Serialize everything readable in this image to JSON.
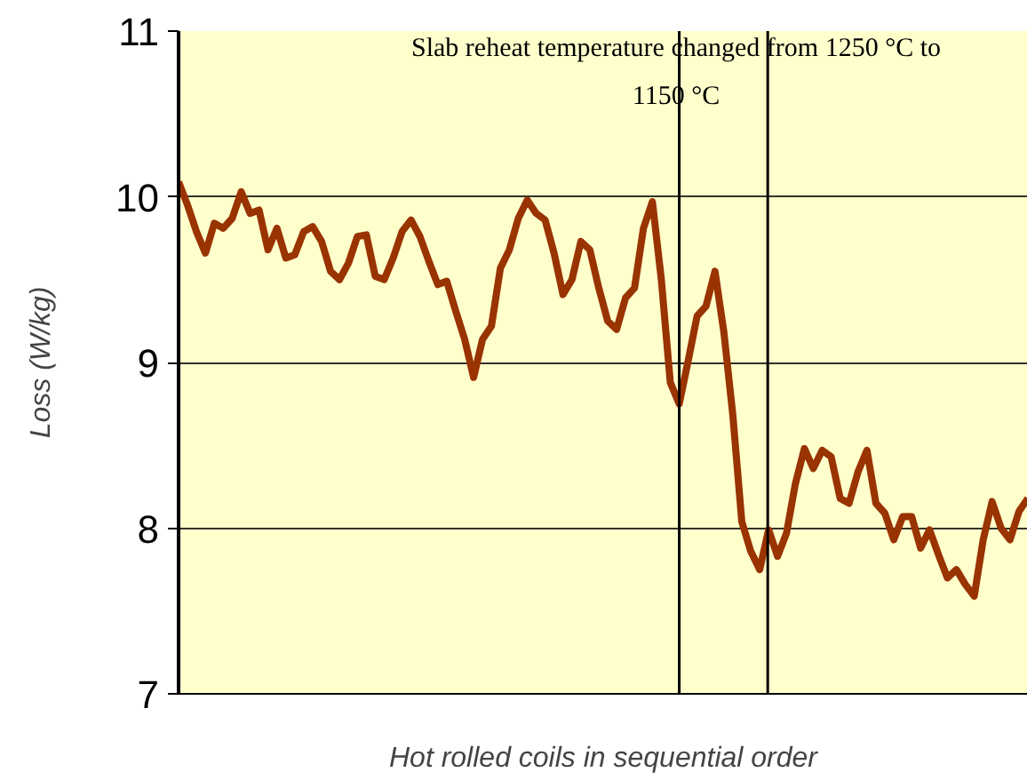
{
  "chart_data": {
    "type": "line",
    "xlabel": "Hot rolled coils in sequential order",
    "ylabel": "Loss (W/kg)",
    "annotations": [
      "Slab reheat temperature changed from 1250 °C to 1150 °C"
    ],
    "ylim": [
      7,
      11
    ],
    "yticks": [
      7,
      8,
      9,
      10,
      11
    ],
    "categories": [
      null,
      null,
      null,
      null,
      null,
      null,
      null,
      null,
      null,
      null,
      null,
      null,
      null,
      null,
      null,
      null,
      null,
      null,
      null,
      null,
      null,
      null,
      null,
      null,
      null,
      null,
      null,
      null,
      null,
      null,
      null,
      null,
      null,
      null,
      null,
      null,
      null,
      null,
      null,
      null,
      null,
      null,
      null,
      null,
      null,
      null,
      null,
      null,
      null,
      null,
      null,
      null,
      null,
      null,
      null,
      null,
      null,
      null,
      null,
      null,
      null,
      null,
      null,
      null,
      null,
      null,
      null,
      null,
      null,
      null,
      null,
      null,
      null,
      null,
      null,
      null,
      null,
      null,
      null,
      null,
      null,
      null,
      null,
      null,
      null,
      null,
      null,
      null,
      null,
      null,
      null,
      null,
      null,
      null,
      null,
      null
    ],
    "tick_labels": "y",
    "grid": "y",
    "series": [
      {
        "color": "#993300",
        "values": [
          10.09,
          9.95,
          9.79,
          9.66,
          9.84,
          9.81,
          9.87,
          10.03,
          9.9,
          9.92,
          9.68,
          9.81,
          9.63,
          9.65,
          9.79,
          9.82,
          9.73,
          9.55,
          9.5,
          9.6,
          9.76,
          9.77,
          9.52,
          9.5,
          9.63,
          9.79,
          9.86,
          9.76,
          9.61,
          9.47,
          9.49,
          9.31,
          9.14,
          8.91,
          9.14,
          9.22,
          9.57,
          9.68,
          9.87,
          9.98,
          9.9,
          9.86,
          9.66,
          9.41,
          9.5,
          9.73,
          9.68,
          9.45,
          9.25,
          9.2,
          9.39,
          9.45,
          9.81,
          9.97,
          9.5,
          8.88,
          8.75,
          9.01,
          9.28,
          9.34,
          9.55,
          9.18,
          8.68,
          8.04,
          7.86,
          7.75,
          7.99,
          7.83,
          7.97,
          8.27,
          8.48,
          8.36,
          8.47,
          8.43,
          8.18,
          8.15,
          8.34,
          8.47,
          8.15,
          8.09,
          7.93,
          8.07,
          8.07,
          7.88,
          7.99,
          7.84,
          7.7,
          7.75,
          7.66,
          7.59,
          7.93,
          8.16,
          8.0,
          7.93,
          8.1,
          8.18
        ]
      }
    ]
  }
}
